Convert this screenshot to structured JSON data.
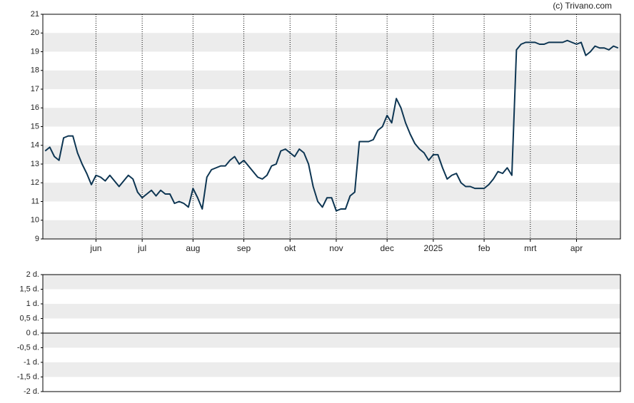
{
  "chart_data": [
    {
      "type": "line",
      "source": "(c) Trivano.com",
      "categories": [
        null,
        null,
        null,
        null,
        null,
        null,
        null,
        null,
        null,
        null,
        null,
        "jun",
        null,
        null,
        null,
        null,
        null,
        null,
        null,
        null,
        null,
        "jul",
        null,
        null,
        null,
        null,
        null,
        null,
        null,
        null,
        null,
        null,
        "aug",
        null,
        null,
        null,
        null,
        null,
        null,
        null,
        null,
        null,
        null,
        "sep",
        null,
        null,
        null,
        null,
        null,
        null,
        null,
        null,
        null,
        "okt",
        null,
        null,
        null,
        null,
        null,
        null,
        null,
        null,
        null,
        "nov",
        null,
        null,
        null,
        null,
        null,
        null,
        null,
        null,
        null,
        null,
        "dec",
        null,
        null,
        null,
        null,
        null,
        null,
        null,
        null,
        null,
        "2025",
        null,
        null,
        null,
        null,
        null,
        null,
        null,
        null,
        null,
        null,
        "feb",
        null,
        null,
        null,
        null,
        null,
        null,
        null,
        null,
        null,
        "mrt",
        null,
        null,
        null,
        null,
        null,
        null,
        null,
        null,
        null,
        "apr",
        null,
        null,
        null,
        null,
        null,
        null,
        null,
        null,
        null
      ],
      "series": [
        {
          "color": "#0d3552",
          "values": [
            13.7,
            13.9,
            13.4,
            13.2,
            14.4,
            14.5,
            14.5,
            13.6,
            13.0,
            12.5,
            11.9,
            12.4,
            12.3,
            12.1,
            12.4,
            12.1,
            11.8,
            12.1,
            12.4,
            12.2,
            11.5,
            11.2,
            11.4,
            11.6,
            11.3,
            11.6,
            11.4,
            11.4,
            10.9,
            11.0,
            10.9,
            10.7,
            11.7,
            11.2,
            10.6,
            12.3,
            12.7,
            12.8,
            12.9,
            12.9,
            13.2,
            13.4,
            13.0,
            13.2,
            12.9,
            12.6,
            12.3,
            12.2,
            12.4,
            12.9,
            13.0,
            13.7,
            13.8,
            13.6,
            13.4,
            13.8,
            13.6,
            13.0,
            11.8,
            11.0,
            10.7,
            11.2,
            11.2,
            10.5,
            10.6,
            10.6,
            11.3,
            11.5,
            14.2,
            14.2,
            14.2,
            14.3,
            14.8,
            15.0,
            15.6,
            15.2,
            16.5,
            16.0,
            15.2,
            14.6,
            14.1,
            13.8,
            13.6,
            13.2,
            13.5,
            13.5,
            12.8,
            12.2,
            12.4,
            12.5,
            12.0,
            11.8,
            11.8,
            11.7,
            11.7,
            11.7,
            11.9,
            12.2,
            12.6,
            12.5,
            12.8,
            12.4,
            19.1,
            19.4,
            19.5,
            19.5,
            19.5,
            19.4,
            19.4,
            19.5,
            19.5,
            19.5,
            19.5,
            19.6,
            19.5,
            19.4,
            19.5,
            18.8,
            19.0,
            19.3,
            19.2,
            19.2,
            19.1,
            19.3,
            19.2
          ]
        }
      ],
      "ylim": [
        9,
        21
      ],
      "yticks": [
        9,
        10,
        11,
        12,
        13,
        14,
        15,
        16,
        17,
        18,
        19,
        20,
        21
      ],
      "grid": true
    },
    {
      "type": "line",
      "series": [],
      "ylim": [
        -2,
        2
      ],
      "yticks": [
        {
          "value": -2,
          "label": "-2 d."
        },
        {
          "value": -1.5,
          "label": "-1,5 d."
        },
        {
          "value": -1,
          "label": "-1 d."
        },
        {
          "value": -0.5,
          "label": "-0,5 d."
        },
        {
          "value": 0,
          "label": "0 d."
        },
        {
          "value": 0.5,
          "label": "0,5 d."
        },
        {
          "value": 1,
          "label": "1 d."
        },
        {
          "value": 1.5,
          "label": "1,5 d."
        },
        {
          "value": 2,
          "label": "2 d."
        }
      ],
      "grid": true
    }
  ]
}
